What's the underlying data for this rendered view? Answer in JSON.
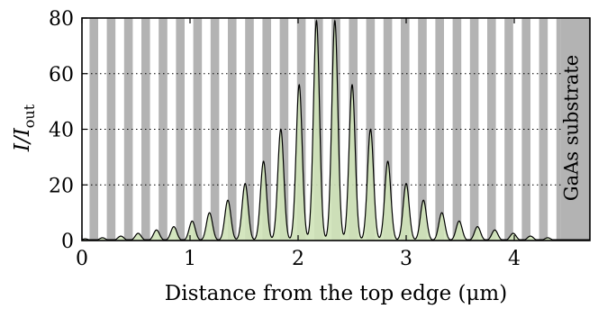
{
  "chart_data": {
    "type": "area",
    "xlabel": "Distance from the top edge (μm)",
    "ylabel": "I/I",
    "ylabel_subscript": "out",
    "xlim": [
      0,
      4.7
    ],
    "ylim": [
      0,
      80
    ],
    "xticks": [
      0,
      1,
      2,
      3,
      4
    ],
    "yticks": [
      0,
      20,
      40,
      60,
      80
    ],
    "grid": "dotted horizontal",
    "annotation": "GaAs substrate",
    "substrate_start": 4.43,
    "peaks": [
      {
        "x": 0.03,
        "y": 0.6
      },
      {
        "x": 0.19,
        "y": 1.0
      },
      {
        "x": 0.36,
        "y": 1.6
      },
      {
        "x": 0.52,
        "y": 2.6
      },
      {
        "x": 0.69,
        "y": 3.8
      },
      {
        "x": 0.85,
        "y": 5.0
      },
      {
        "x": 1.02,
        "y": 7.0
      },
      {
        "x": 1.18,
        "y": 10.0
      },
      {
        "x": 1.35,
        "y": 14.5
      },
      {
        "x": 1.51,
        "y": 20.5
      },
      {
        "x": 1.68,
        "y": 28.5
      },
      {
        "x": 1.84,
        "y": 40.0
      },
      {
        "x": 2.01,
        "y": 56.0
      },
      {
        "x": 2.17,
        "y": 79.0
      },
      {
        "x": 2.34,
        "y": 79.0
      },
      {
        "x": 2.5,
        "y": 56.0
      },
      {
        "x": 2.67,
        "y": 40.0
      },
      {
        "x": 2.83,
        "y": 28.5
      },
      {
        "x": 3.0,
        "y": 20.5
      },
      {
        "x": 3.16,
        "y": 14.5
      },
      {
        "x": 3.33,
        "y": 10.0
      },
      {
        "x": 3.49,
        "y": 7.0
      },
      {
        "x": 3.66,
        "y": 5.0
      },
      {
        "x": 3.82,
        "y": 3.8
      },
      {
        "x": 3.99,
        "y": 2.6
      },
      {
        "x": 4.15,
        "y": 1.6
      },
      {
        "x": 4.31,
        "y": 1.0
      }
    ],
    "colors": {
      "stripe": "#b3b3b3",
      "fill": "#cfe3b8",
      "line": "#000000"
    }
  }
}
